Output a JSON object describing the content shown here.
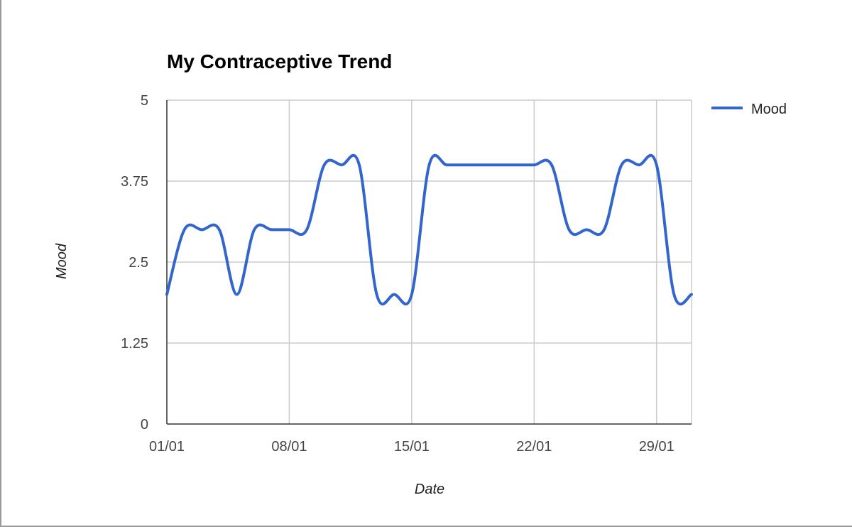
{
  "chart_data": {
    "type": "line",
    "title": "My Contraceptive Trend",
    "xlabel": "Date",
    "ylabel": "Mood",
    "x": [
      "01/01",
      "02/01",
      "03/01",
      "04/01",
      "05/01",
      "06/01",
      "07/01",
      "08/01",
      "09/01",
      "10/01",
      "11/01",
      "12/01",
      "13/01",
      "14/01",
      "15/01",
      "16/01",
      "17/01",
      "18/01",
      "19/01",
      "20/01",
      "21/01",
      "22/01",
      "23/01",
      "24/01",
      "25/01",
      "26/01",
      "27/01",
      "28/01",
      "29/01",
      "30/01",
      "31/01"
    ],
    "series": [
      {
        "name": "Mood",
        "color": "#3366cc",
        "values": [
          2,
          3,
          3,
          3,
          2,
          3,
          3,
          3,
          3,
          4,
          4,
          4,
          2,
          2,
          2,
          4,
          4,
          4,
          4,
          4,
          4,
          4,
          4,
          3,
          3,
          3,
          4,
          4,
          4,
          2,
          2
        ]
      }
    ],
    "x_tick_labels": [
      "01/01",
      "08/01",
      "15/01",
      "22/01",
      "29/01"
    ],
    "y_tick_labels": [
      "0",
      "1.25",
      "2.5",
      "3.75",
      "5"
    ],
    "ylim": [
      0,
      5
    ],
    "grid": true,
    "legend_position": "right",
    "interpolation": "smooth"
  }
}
